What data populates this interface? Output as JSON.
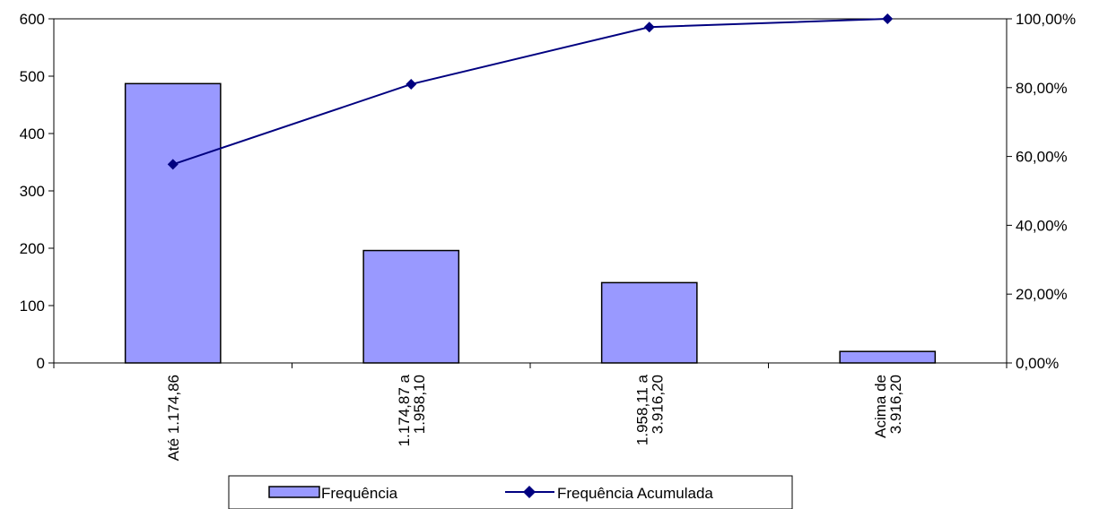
{
  "chart_data": {
    "type": "bar+line",
    "title": "",
    "categories": [
      [
        "Até 1.174,86"
      ],
      [
        "1.174,87 a",
        "1.958,10"
      ],
      [
        "1.958,11 a",
        "3.916,20"
      ],
      [
        "Acima de",
        "3.916,20"
      ]
    ],
    "series": [
      {
        "name": "Frequência",
        "type": "bar",
        "axis": "left",
        "values": [
          487,
          196,
          140,
          20
        ],
        "color": "#9999ff"
      },
      {
        "name": "Frequência Acumulada",
        "type": "line",
        "axis": "right",
        "values": [
          0.577,
          0.81,
          0.976,
          1.0
        ],
        "color": "#000080"
      }
    ],
    "y_left": {
      "min": 0,
      "max": 600,
      "ticks": [
        "0",
        "100",
        "200",
        "300",
        "400",
        "500",
        "600"
      ]
    },
    "y_right": {
      "min": 0,
      "max": 1,
      "ticks": [
        "0,00%",
        "20,00%",
        "40,00%",
        "60,00%",
        "80,00%",
        "100,00%"
      ]
    },
    "legend": {
      "placement": "bottom"
    }
  }
}
